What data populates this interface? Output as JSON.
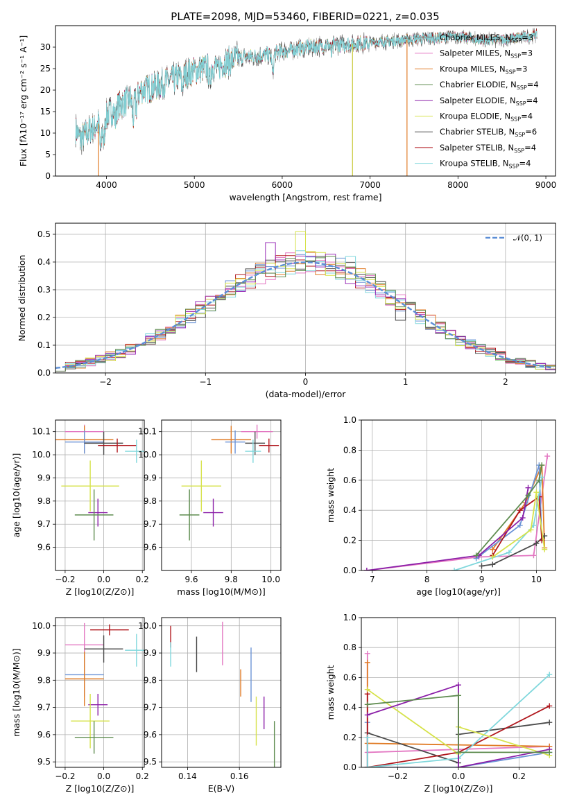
{
  "figure_title": "PLATE=2098, MJD=53460, FIBERID=0221, z=0.035",
  "chart_data": [
    {
      "id": "spectrum",
      "type": "line",
      "title": "PLATE=2098, MJD=53460, FIBERID=0221, z=0.035",
      "xlabel": "wavelength [Angstrom, rest frame]",
      "ylabel": "Flux [fλ10⁻¹⁷ erg cm⁻² s⁻¹ A⁻¹]",
      "xlim": [
        3420,
        9110
      ],
      "ylim": [
        0,
        35
      ],
      "xticks": [
        4000,
        5000,
        6000,
        7000,
        8000,
        9000
      ],
      "yticks": [
        0,
        5,
        10,
        15,
        20,
        25,
        30
      ],
      "grid": false,
      "legend_position": "top-right",
      "continuum": {
        "x": [
          3650,
          3700,
          3800,
          3900,
          4000,
          4100,
          4200,
          4300,
          4400,
          4500,
          4700,
          5000,
          5300,
          5500,
          5800,
          6000,
          6300,
          6600,
          7000,
          7300,
          7600,
          8000,
          8300,
          8600,
          8800,
          8900
        ],
        "y": [
          11,
          8.5,
          10.5,
          12,
          14,
          16,
          17,
          18,
          20,
          20.5,
          22,
          24.5,
          26,
          27.5,
          28,
          29,
          30,
          30.5,
          31,
          31.5,
          32,
          32.5,
          31.5,
          32,
          32.5,
          33
        ]
      },
      "absorption_lines": [
        {
          "x": 3934,
          "depth": 7
        },
        {
          "x": 3969,
          "depth": 6
        },
        {
          "x": 4102,
          "depth": 3
        },
        {
          "x": 4304,
          "depth": 5
        },
        {
          "x": 4340,
          "depth": 3
        },
        {
          "x": 4861,
          "depth": 3
        },
        {
          "x": 5175,
          "depth": 4
        },
        {
          "x": 5270,
          "depth": 2
        },
        {
          "x": 5893,
          "depth": 5
        },
        {
          "x": 6563,
          "depth": 2
        }
      ],
      "series": [
        {
          "name": "Chabrier MILES, N_SSP=3",
          "color": "#8c8c8c"
        },
        {
          "name": "Salpeter MILES, N_SSP=3",
          "color": "#e377c2"
        },
        {
          "name": "Kroupa MILES, N_SSP=3",
          "color": "#e07b25"
        },
        {
          "name": "Chabrier ELODIE, N_SSP=4",
          "color": "#5e8c4f"
        },
        {
          "name": "Salpeter ELODIE, N_SSP=4",
          "color": "#8b1fa8"
        },
        {
          "name": "Kroupa ELODIE, N_SSP=4",
          "color": "#d6e24a"
        },
        {
          "name": "Chabrier STELIB, N_SSP=6",
          "color": "#4a4a4a"
        },
        {
          "name": "Salpeter STELIB, N_SSP=4",
          "color": "#b0161c"
        },
        {
          "name": "Kroupa STELIB, N_SSP=4",
          "color": "#7fd7dc"
        }
      ],
      "dropouts": [
        {
          "x": 3910,
          "color": "#e07b25"
        },
        {
          "x": 6800,
          "color": "#c9c93a"
        },
        {
          "x": 7420,
          "color": "#e07b25"
        }
      ],
      "legend_labels": [
        {
          "base": "Chabrier MILES, N",
          "sub": "SSP",
          "tail": "=3"
        },
        {
          "base": "Salpeter MILES, N",
          "sub": "SSP",
          "tail": "=3"
        },
        {
          "base": "Kroupa MILES, N",
          "sub": "SSP",
          "tail": "=3"
        },
        {
          "base": "Chabrier ELODIE, N",
          "sub": "SSP",
          "tail": "=4"
        },
        {
          "base": "Salpeter ELODIE, N",
          "sub": "SSP",
          "tail": "=4"
        },
        {
          "base": "Kroupa ELODIE, N",
          "sub": "SSP",
          "tail": "=4"
        },
        {
          "base": "Chabrier STELIB, N",
          "sub": "SSP",
          "tail": "=6"
        },
        {
          "base": "Salpeter STELIB, N",
          "sub": "SSP",
          "tail": "=4"
        },
        {
          "base": "Kroupa STELIB, N",
          "sub": "SSP",
          "tail": "=4"
        }
      ]
    },
    {
      "id": "residuals",
      "type": "area",
      "xlabel": "(data-model)/error",
      "ylabel": "Normed distribution",
      "xlim": [
        -2.5,
        2.5
      ],
      "ylim": [
        0,
        0.54
      ],
      "xticks": [
        -2,
        -1,
        0,
        1,
        2
      ],
      "yticks": [
        0.0,
        0.1,
        0.2,
        0.3,
        0.4,
        0.5
      ],
      "grid": true,
      "legend_position": "top-right",
      "bin_width": 0.1,
      "reference_curve": {
        "name": "𝒩(0, 1)",
        "color": "#5b8ed6",
        "mean": 0,
        "sigma": 1
      },
      "highlight_bins": [
        {
          "x": -0.35,
          "value": 0.47,
          "color": "#9b30b8"
        },
        {
          "x": -0.05,
          "value": 0.51,
          "color": "#d6e24a"
        },
        {
          "x": 0.45,
          "value": 0.42,
          "color": "#7fd7dc"
        },
        {
          "x": 1.0,
          "value": 0.19,
          "color": "#4a4a4a"
        }
      ]
    },
    {
      "id": "age_vs_Z",
      "type": "scatter",
      "xlabel": "Z [log10(Z/Z⊙)]",
      "ylabel": "age [log10(age/yr)]",
      "xlim": [
        -0.25,
        0.21
      ],
      "ylim": [
        9.5,
        10.15
      ],
      "xticks": [
        -0.2,
        0.0,
        0.2
      ],
      "yticks": [
        9.6,
        9.7,
        9.8,
        9.9,
        10.0,
        10.1
      ],
      "grid": true,
      "points": [
        {
          "x": -0.1,
          "y": 10.1,
          "xerr": 0.1,
          "yerr": 0.03,
          "color": "#e377c2"
        },
        {
          "x": -0.1,
          "y": 10.065,
          "xerr": 0.15,
          "yerr": 0.06,
          "color": "#e07b25"
        },
        {
          "x": -0.1,
          "y": 10.055,
          "xerr": 0.1,
          "yerr": 0.05,
          "color": "#6b93d6"
        },
        {
          "x": 0.0,
          "y": 10.05,
          "xerr": 0.1,
          "yerr": 0.05,
          "color": "#4a4a4a"
        },
        {
          "x": 0.07,
          "y": 10.04,
          "xerr": 0.1,
          "yerr": 0.03,
          "color": "#b0161c"
        },
        {
          "x": 0.17,
          "y": 10.015,
          "xerr": 0.06,
          "yerr": 0.05,
          "color": "#7fd7dc"
        },
        {
          "x": -0.07,
          "y": 9.865,
          "xerr": 0.15,
          "yerr": 0.11,
          "color": "#d6e24a"
        },
        {
          "x": -0.03,
          "y": 9.75,
          "xerr": 0.05,
          "yerr": 0.06,
          "color": "#8b1fa8"
        },
        {
          "x": -0.05,
          "y": 9.74,
          "xerr": 0.1,
          "yerr": 0.11,
          "color": "#5e8c4f"
        }
      ]
    },
    {
      "id": "age_vs_mass",
      "type": "scatter",
      "xlabel": "mass [log10(M/M⊙)]",
      "xlim": [
        9.45,
        10.05
      ],
      "ylim": [
        9.5,
        10.15
      ],
      "xticks": [
        9.6,
        9.8,
        10.0
      ],
      "yticks": [
        9.6,
        9.7,
        9.8,
        9.9,
        10.0,
        10.1
      ],
      "grid": true,
      "points": [
        {
          "x": 9.93,
          "y": 10.1,
          "xerr": 0.08,
          "yerr": 0.03,
          "color": "#e377c2"
        },
        {
          "x": 9.8,
          "y": 10.065,
          "xerr": 0.1,
          "yerr": 0.06,
          "color": "#e07b25"
        },
        {
          "x": 9.82,
          "y": 10.055,
          "xerr": 0.05,
          "yerr": 0.05,
          "color": "#6b93d6"
        },
        {
          "x": 9.92,
          "y": 10.05,
          "xerr": 0.05,
          "yerr": 0.05,
          "color": "#4a4a4a"
        },
        {
          "x": 9.99,
          "y": 10.04,
          "xerr": 0.05,
          "yerr": 0.03,
          "color": "#b0161c"
        },
        {
          "x": 9.91,
          "y": 10.015,
          "xerr": 0.04,
          "yerr": 0.05,
          "color": "#7fd7dc"
        },
        {
          "x": 9.65,
          "y": 9.865,
          "xerr": 0.1,
          "yerr": 0.11,
          "color": "#d6e24a"
        },
        {
          "x": 9.71,
          "y": 9.75,
          "xerr": 0.05,
          "yerr": 0.06,
          "color": "#8b1fa8"
        },
        {
          "x": 9.59,
          "y": 9.74,
          "xerr": 0.05,
          "yerr": 0.11,
          "color": "#5e8c4f"
        }
      ]
    },
    {
      "id": "weight_vs_age",
      "type": "line",
      "xlabel": "age [log10(age/yr)]",
      "ylabel": "mass weight",
      "xlim": [
        6.8,
        10.35
      ],
      "ylim": [
        0,
        1.0
      ],
      "xticks": [
        7,
        8,
        9,
        10
      ],
      "yticks": [
        0.0,
        0.2,
        0.4,
        0.6,
        0.8,
        1.0
      ],
      "grid": true,
      "series": [
        {
          "color": "#e377c2",
          "x": [
            6.9,
            8.95,
            9.95,
            10.2
          ],
          "y": [
            0.0,
            0.09,
            0.1,
            0.76
          ]
        },
        {
          "color": "#e07b25",
          "x": [
            9.2,
            9.8,
            10.1,
            10.15
          ],
          "y": [
            0.14,
            0.45,
            0.7,
            0.15
          ]
        },
        {
          "color": "#6b93d6",
          "x": [
            8.9,
            9.7,
            10.05,
            10.1
          ],
          "y": [
            0.08,
            0.3,
            0.7,
            0.2
          ]
        },
        {
          "color": "#4a4a4a",
          "x": [
            9.0,
            9.2,
            10.0,
            10.15
          ],
          "y": [
            0.03,
            0.04,
            0.18,
            0.23
          ]
        },
        {
          "color": "#b0161c",
          "x": [
            9.2,
            9.7,
            10.05,
            10.1
          ],
          "y": [
            0.1,
            0.4,
            0.49,
            0.2
          ]
        },
        {
          "color": "#7fd7dc",
          "x": [
            8.5,
            9.5,
            9.95,
            10.1
          ],
          "y": [
            0.0,
            0.12,
            0.3,
            0.62
          ]
        },
        {
          "color": "#d6e24a",
          "x": [
            9.2,
            9.9,
            10.0,
            10.15
          ],
          "y": [
            0.09,
            0.27,
            0.52,
            0.14
          ]
        },
        {
          "color": "#8b1fa8",
          "x": [
            6.9,
            8.95,
            9.75,
            9.85
          ],
          "y": [
            0.0,
            0.1,
            0.35,
            0.55
          ]
        },
        {
          "color": "#5e8c4f",
          "x": [
            8.9,
            9.85,
            10.05,
            10.1
          ],
          "y": [
            0.1,
            0.5,
            0.6,
            0.7
          ]
        }
      ]
    },
    {
      "id": "mass_vs_Z",
      "type": "scatter",
      "xlabel": "Z [log10(Z/Z⊙)]",
      "ylabel": "mass [log10(M/M⊙)]",
      "xlim": [
        -0.25,
        0.21
      ],
      "ylim": [
        9.48,
        10.03
      ],
      "xticks": [
        -0.2,
        0.0,
        0.2
      ],
      "yticks": [
        9.5,
        9.6,
        9.7,
        9.8,
        9.9,
        10.0
      ],
      "grid": true,
      "points": [
        {
          "x": 0.03,
          "y": 9.985,
          "xerr": 0.1,
          "yerr": 0.02,
          "color": "#b0161c"
        },
        {
          "x": -0.1,
          "y": 9.93,
          "xerr": 0.1,
          "yerr": 0.08,
          "color": "#e377c2"
        },
        {
          "x": 0.0,
          "y": 9.915,
          "xerr": 0.1,
          "yerr": 0.05,
          "color": "#4a4a4a"
        },
        {
          "x": 0.17,
          "y": 9.91,
          "xerr": 0.06,
          "yerr": 0.06,
          "color": "#7fd7dc"
        },
        {
          "x": -0.1,
          "y": 9.82,
          "xerr": 0.1,
          "yerr": 0.08,
          "color": "#6b93d6"
        },
        {
          "x": -0.1,
          "y": 9.805,
          "xerr": 0.1,
          "yerr": 0.1,
          "color": "#e07b25"
        },
        {
          "x": -0.03,
          "y": 9.71,
          "xerr": 0.05,
          "yerr": 0.04,
          "color": "#8b1fa8"
        },
        {
          "x": -0.07,
          "y": 9.65,
          "xerr": 0.1,
          "yerr": 0.1,
          "color": "#d6e24a"
        },
        {
          "x": -0.05,
          "y": 9.59,
          "xerr": 0.1,
          "yerr": 0.06,
          "color": "#5e8c4f"
        }
      ]
    },
    {
      "id": "mass_vs_ebv",
      "type": "scatter",
      "xlabel": "E(B-V)",
      "xlim": [
        0.13,
        0.176
      ],
      "ylim": [
        9.48,
        10.03
      ],
      "xticks": [
        0.14,
        0.16
      ],
      "yticks": [
        9.5,
        9.6,
        9.7,
        9.8,
        9.9,
        10.0
      ],
      "grid": true,
      "points": [
        {
          "x": 0.1335,
          "y": 9.96,
          "yerr": 0.04,
          "color": "#b0161c"
        },
        {
          "x": 0.1335,
          "y": 9.895,
          "yerr": 0.045,
          "color": "#7fd7dc"
        },
        {
          "x": 0.1435,
          "y": 9.895,
          "yerr": 0.065,
          "color": "#4a4a4a"
        },
        {
          "x": 0.1535,
          "y": 9.935,
          "yerr": 0.08,
          "color": "#e377c2"
        },
        {
          "x": 0.1605,
          "y": 9.79,
          "yerr": 0.05,
          "color": "#e07b25"
        },
        {
          "x": 0.1645,
          "y": 9.82,
          "yerr": 0.1,
          "color": "#6b93d6"
        },
        {
          "x": 0.1665,
          "y": 9.65,
          "yerr": 0.09,
          "color": "#d6e24a"
        },
        {
          "x": 0.1695,
          "y": 9.68,
          "yerr": 0.06,
          "color": "#8b1fa8"
        },
        {
          "x": 0.1735,
          "y": 9.55,
          "yerr": 0.1,
          "color": "#5e8c4f"
        }
      ]
    },
    {
      "id": "weight_vs_Z",
      "type": "line",
      "xlabel": "Z [log10(Z/Z⊙)]",
      "ylabel": "mass weight",
      "xlim": [
        -0.32,
        0.32
      ],
      "ylim": [
        0,
        1.0
      ],
      "xticks": [
        -0.2,
        0.0,
        0.2
      ],
      "yticks": [
        0.0,
        0.2,
        0.4,
        0.6,
        0.8,
        1.0
      ],
      "grid": true,
      "series": [
        {
          "color": "#e377c2",
          "x": [
            -0.3,
            -0.3,
            0.0,
            0.3
          ],
          "y": [
            0.76,
            0.1,
            0.12,
            0.14
          ]
        },
        {
          "color": "#e07b25",
          "x": [
            -0.3,
            -0.3,
            0.0,
            0.3
          ],
          "y": [
            0.7,
            0.16,
            0.15,
            0.14
          ]
        },
        {
          "color": "#6b93d6",
          "x": [
            -0.3,
            -0.3,
            0.0,
            0.3
          ],
          "y": [
            0.3,
            0.0,
            0.0,
            0.1
          ]
        },
        {
          "color": "#4a4a4a",
          "x": [
            -0.3,
            0.0,
            0.0,
            0.3
          ],
          "y": [
            0.23,
            0.03,
            0.22,
            0.3
          ]
        },
        {
          "color": "#b0161c",
          "x": [
            -0.3,
            -0.3,
            0.0,
            0.3
          ],
          "y": [
            0.49,
            0.0,
            0.1,
            0.41
          ]
        },
        {
          "color": "#7fd7dc",
          "x": [
            -0.3,
            -0.3,
            0.0,
            0.3
          ],
          "y": [
            0.2,
            0.0,
            0.06,
            0.62
          ]
        },
        {
          "color": "#d6e24a",
          "x": [
            -0.3,
            0.0,
            0.0,
            0.3
          ],
          "y": [
            0.52,
            0.09,
            0.27,
            0.08
          ]
        },
        {
          "color": "#8b1fa8",
          "x": [
            -0.3,
            0.0,
            0.0,
            0.3
          ],
          "y": [
            0.35,
            0.55,
            0.0,
            0.12
          ]
        },
        {
          "color": "#5e8c4f",
          "x": [
            -0.3,
            0.0,
            0.0,
            0.3
          ],
          "y": [
            0.42,
            0.48,
            0.1,
            0.1
          ]
        }
      ]
    }
  ]
}
